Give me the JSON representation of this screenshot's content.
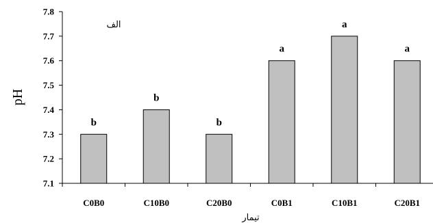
{
  "chart_data": {
    "type": "bar",
    "categories": [
      "C0B0",
      "C10B0",
      "C20B0",
      "C0B1",
      "C10B1",
      "C20B1"
    ],
    "values": [
      7.3,
      7.4,
      7.3,
      7.6,
      7.7,
      7.6
    ],
    "significance_letters": [
      "b",
      "b",
      "b",
      "a",
      "a",
      "a"
    ],
    "panel_label": "الف",
    "xlabel": "تیمار",
    "ylabel": "pH",
    "ylim": [
      7.1,
      7.8
    ],
    "yticks": [
      7.1,
      7.2,
      7.3,
      7.4,
      7.5,
      7.6,
      7.7,
      7.8
    ],
    "ytick_labels": [
      "7.1",
      "7.2",
      "7.3",
      "7.4",
      "7.5",
      "7.6",
      "7.7",
      "7.8"
    ],
    "bar_color": "#c0c0c0",
    "bar_edge_color": "#000000",
    "grid": false,
    "legend": "none"
  }
}
